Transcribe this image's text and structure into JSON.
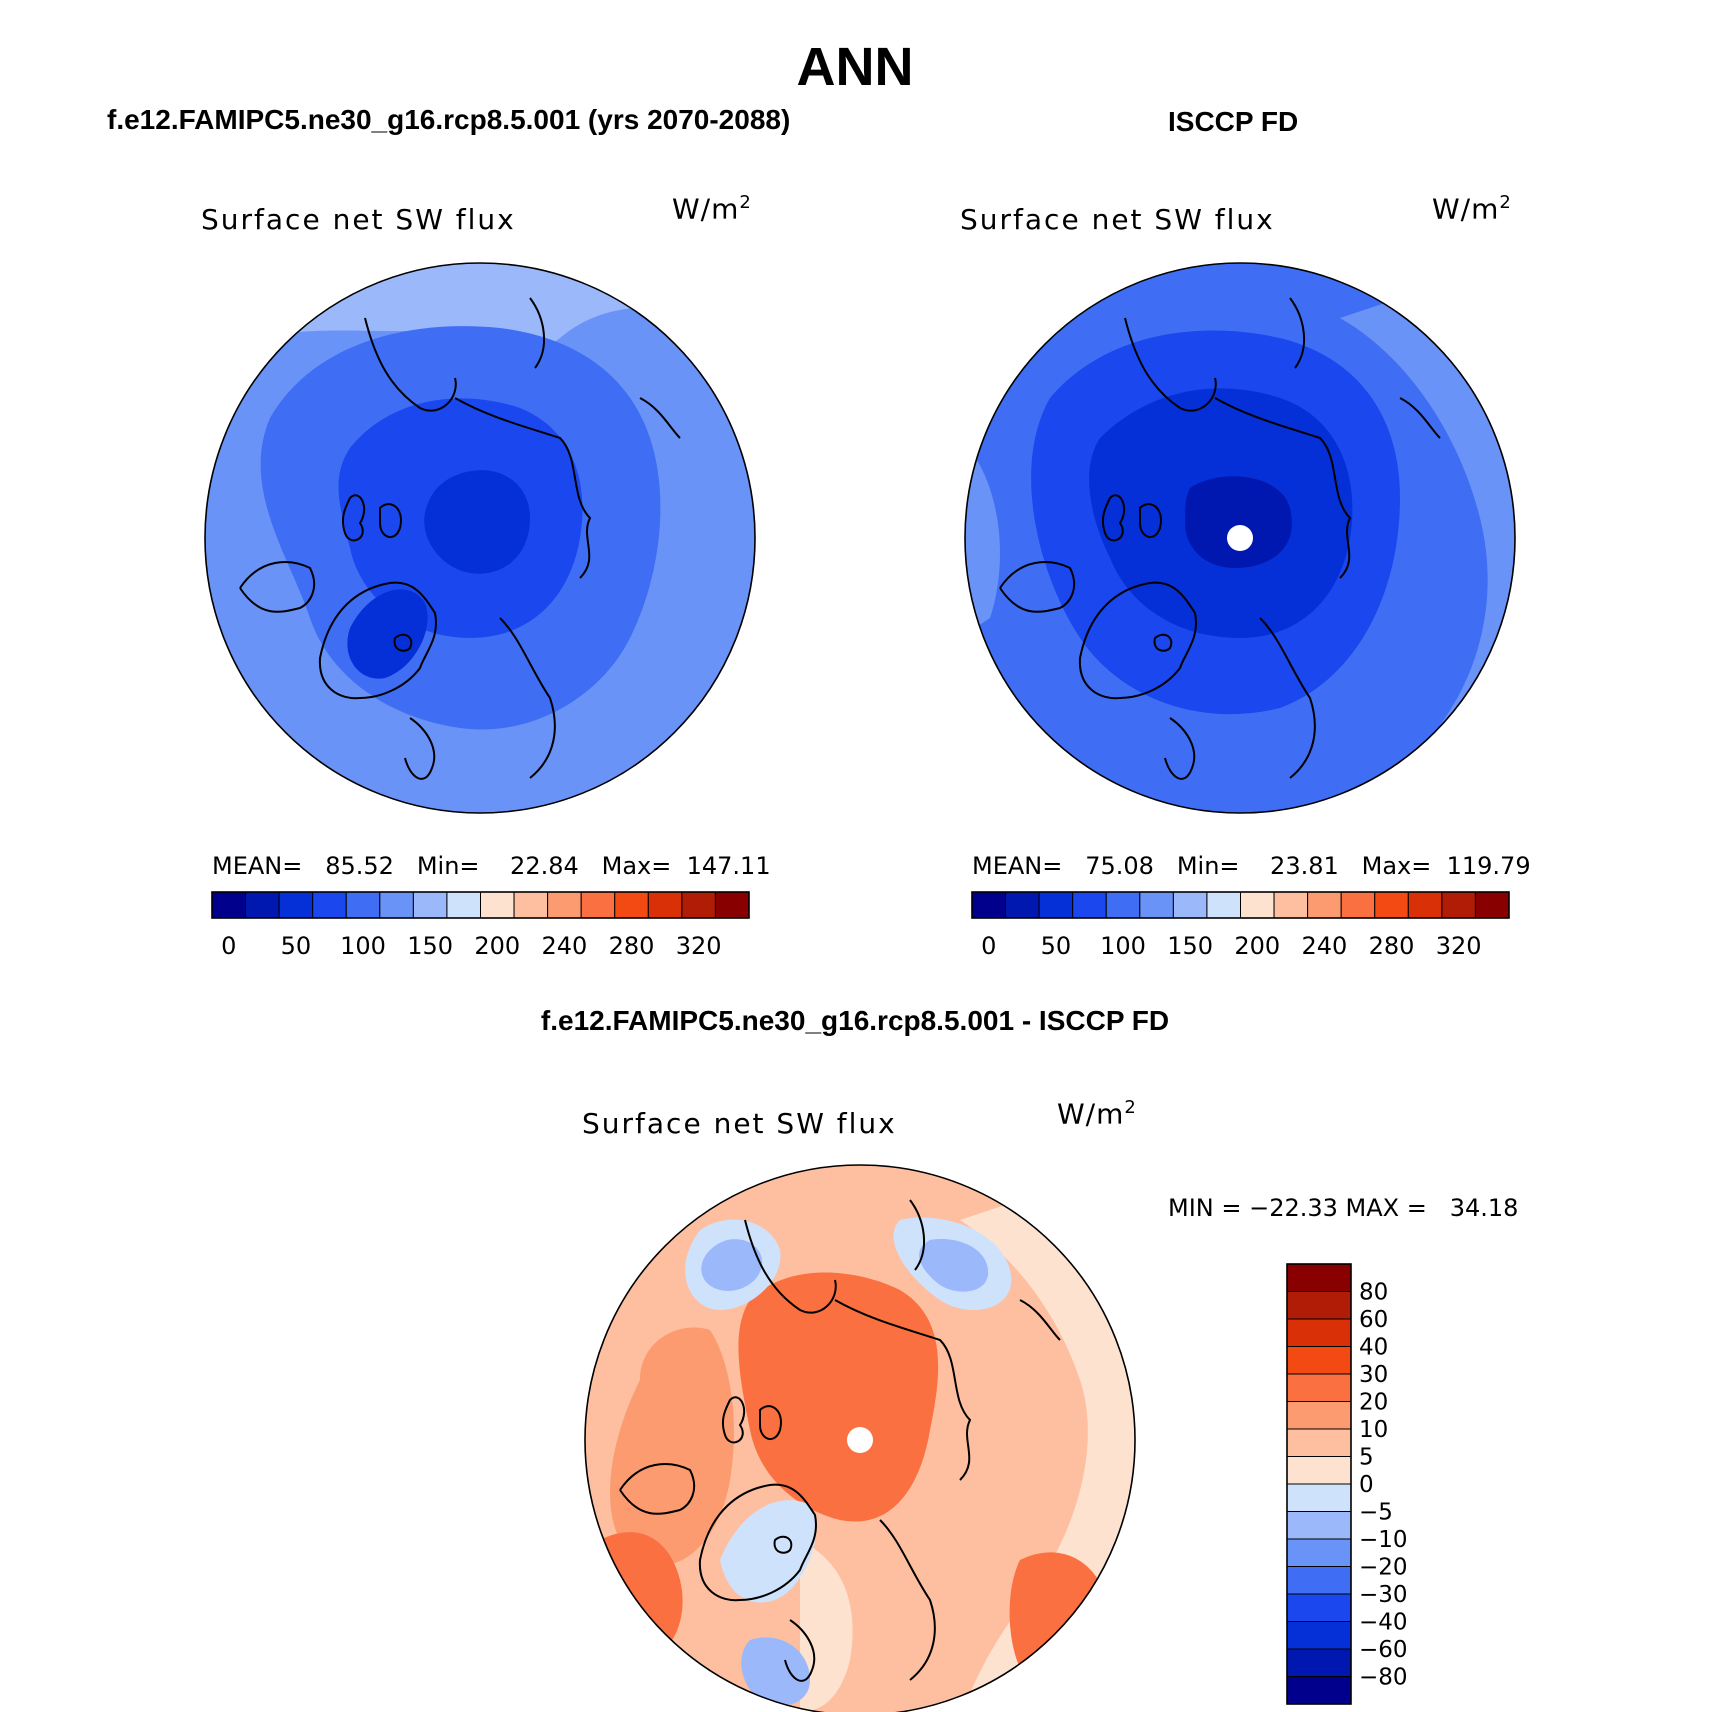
{
  "main_title": "ANN",
  "panels": [
    {
      "title": "f.e12.FAMIPC5.ne30_g16.rcp8.5.001 (yrs 2070-2088)",
      "variable": "Surface net SW flux",
      "unit_base": "W/m",
      "unit_exp": "2",
      "stats": "MEAN=   85.52   Min=    22.84   Max=  147.11",
      "pole_marker": false
    },
    {
      "title": "ISCCP FD",
      "variable": "Surface net SW flux",
      "unit_base": "W/m",
      "unit_exp": "2",
      "stats": "MEAN=   75.08   Min=    23.81   Max=  119.79",
      "pole_marker": true
    }
  ],
  "diff_panel": {
    "title": "f.e12.FAMIPC5.ne30_g16.rcp8.5.001 - ISCCP FD",
    "variable": "Surface net SW flux",
    "unit_base": "W/m",
    "unit_exp": "2",
    "stats": "MIN = −22.33 MAX =   34.18",
    "pole_marker": true
  },
  "colorbar_horizontal": {
    "tick_labels": [
      "0",
      "50",
      "100",
      "150",
      "200",
      "240",
      "280",
      "320"
    ],
    "colors": [
      "#00008c",
      "#0018b0",
      "#0530d8",
      "#1a48ee",
      "#3f6ef4",
      "#6a93f7",
      "#9bb8fa",
      "#cfe2fb",
      "#fde2d0",
      "#fdbfa0",
      "#fc9b70",
      "#fa7040",
      "#f24a12",
      "#d93007",
      "#b01c05",
      "#880000"
    ]
  },
  "colorbar_vertical": {
    "tick_labels": [
      "80",
      "60",
      "40",
      "30",
      "20",
      "10",
      "5",
      "0",
      "−5",
      "−10",
      "−20",
      "−30",
      "−40",
      "−60",
      "−80"
    ],
    "colors_top_to_bottom": [
      "#880000",
      "#b01c05",
      "#d93007",
      "#f24a12",
      "#fa7040",
      "#fc9b70",
      "#fdbfa0",
      "#fde2d0",
      "#cfe2fb",
      "#9bb8fa",
      "#6a93f7",
      "#3f6ef4",
      "#1a48ee",
      "#0530d8",
      "#0018b0",
      "#00008c"
    ]
  },
  "map_colors": {
    "model": {
      "background": "#6a93f7",
      "outer": "#9bb8fa",
      "mid": "#3f6ef4",
      "inner": "#1a48ee",
      "core": "#0530d8"
    },
    "obs": {
      "background": "#3f6ef4",
      "outer": "#6a93f7",
      "mid": "#1a48ee",
      "inner": "#0530d8",
      "core": "#0018b0"
    },
    "diff": {
      "background": "#fdbfa0",
      "warm": "#fc9b70",
      "hot": "#fa7040",
      "light": "#fde2d0",
      "cool": "#cfe2fb",
      "cold": "#9bb8fa"
    }
  }
}
